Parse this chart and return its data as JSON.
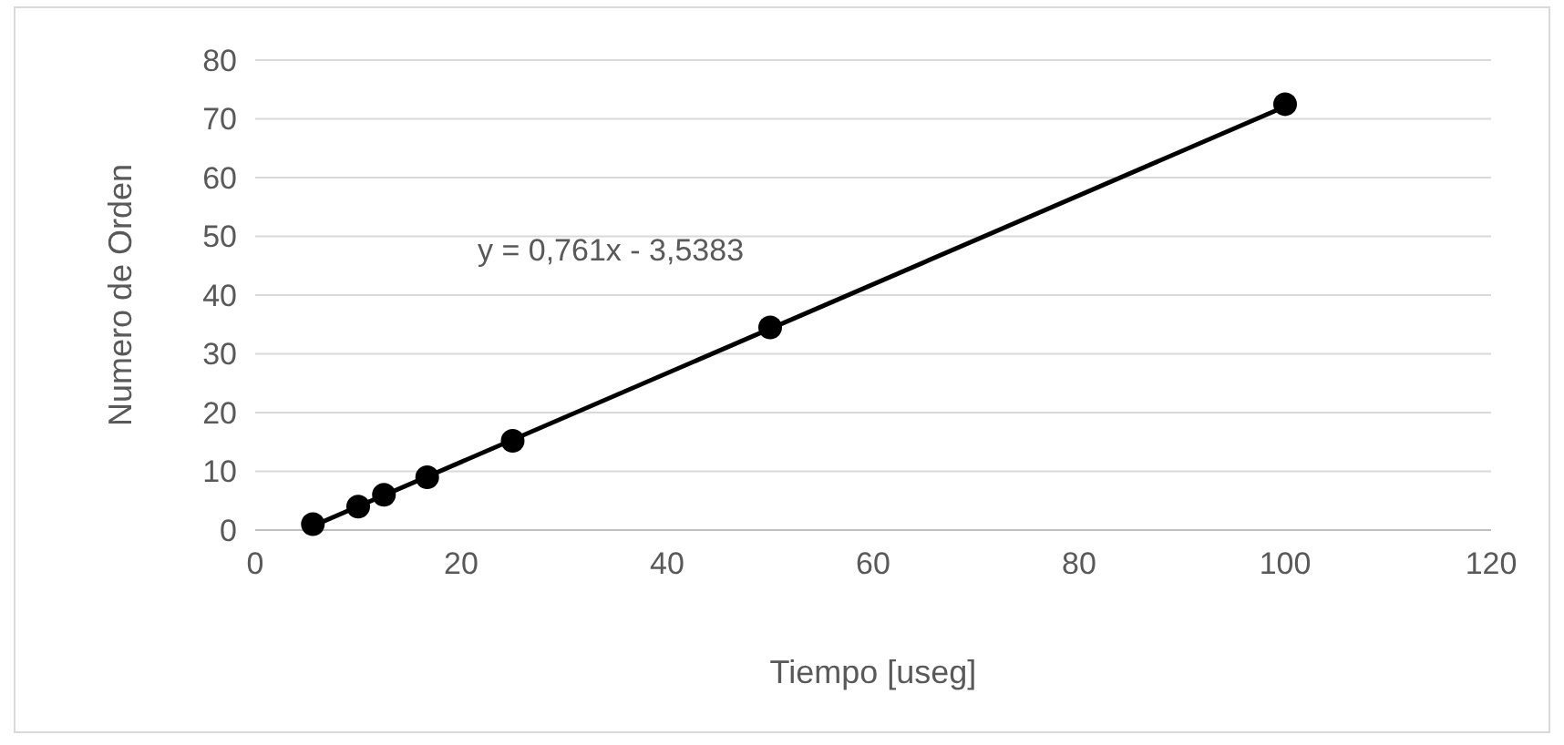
{
  "chart_data": {
    "type": "scatter",
    "xlabel": "Tiempo [useg]",
    "ylabel": "Numero de Orden",
    "annotations": [
      "y = 0,761x - 3,5383"
    ],
    "series": [
      {
        "color": "#000000",
        "marker": "circle",
        "x": [
          5.6,
          10,
          12.5,
          16.7,
          25,
          50,
          100
        ],
        "values": [
          1,
          4,
          6,
          9,
          15.2,
          34.5,
          72.5
        ]
      },
      {
        "type": "line",
        "color": "#000000",
        "marker": "none",
        "line_style": "solid",
        "x": [
          5.6,
          100
        ],
        "values": [
          0.7,
          72.1
        ]
      }
    ],
    "xlim": [
      0,
      120
    ],
    "xticks": [
      0,
      20,
      40,
      60,
      80,
      100,
      120
    ],
    "ylim": [
      0,
      80
    ],
    "yticks": [
      0,
      10,
      20,
      30,
      40,
      50,
      60,
      70,
      80
    ],
    "grid": "y"
  }
}
